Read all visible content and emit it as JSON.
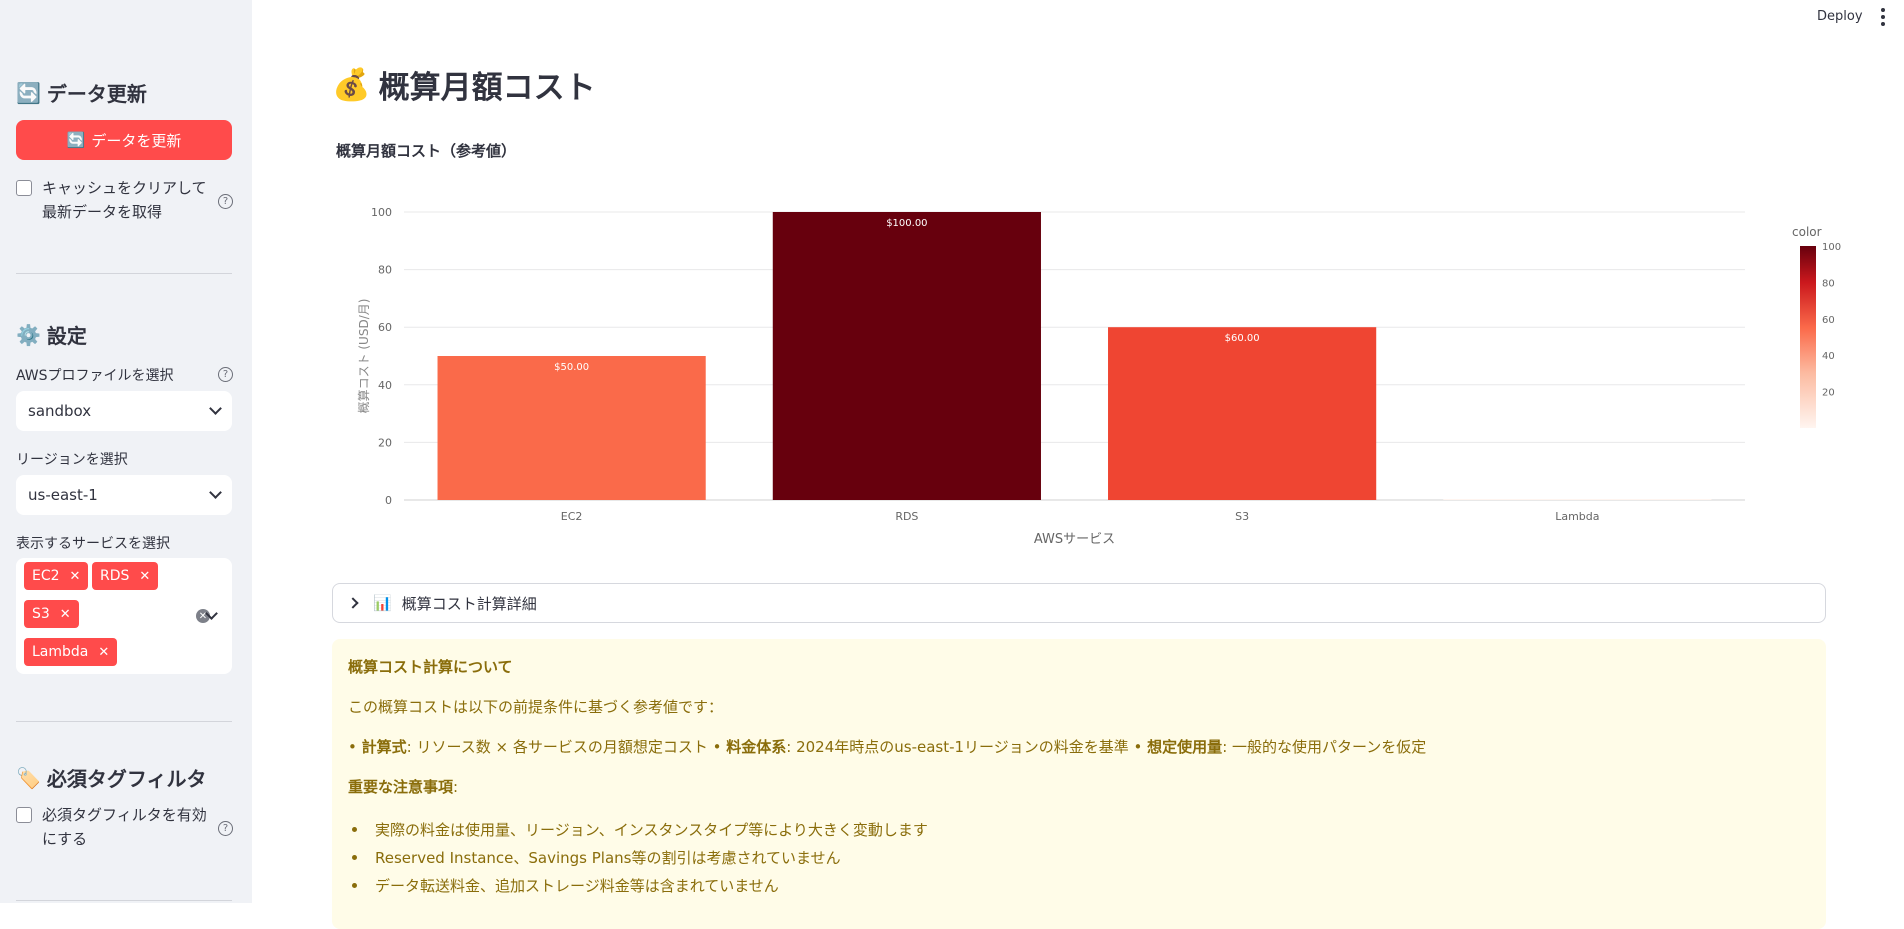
{
  "topbar": {
    "deploy_label": "Deploy"
  },
  "sidebar": {
    "refresh_section": {
      "icon": "🔄",
      "heading": "データ更新",
      "button_icon": "🔄",
      "button_label": "データを更新",
      "checkbox_label": "キャッシュをクリアして最新データを取得"
    },
    "settings_section": {
      "icon": "⚙️",
      "heading": "設定",
      "profile_label": "AWSプロファイルを選択",
      "profile_value": "sandbox",
      "region_label": "リージョンを選択",
      "region_value": "us-east-1",
      "services_label": "表示するサービスを選択",
      "services": [
        {
          "label": "EC2"
        },
        {
          "label": "RDS"
        },
        {
          "label": "S3"
        },
        {
          "label": "Lambda"
        }
      ]
    },
    "tag_section": {
      "icon": "🏷️",
      "heading": "必須タグフィルタ",
      "checkbox_label": "必須タグフィルタを有効にする"
    }
  },
  "main": {
    "title_icon": "💰",
    "title": "概算月額コスト",
    "chart_heading": "概算月額コスト（参考値）",
    "expander": {
      "icon": "📊",
      "label": "概算コスト計算詳細"
    },
    "info": {
      "heading": "概算コスト計算について",
      "intro": "この概算コストは以下の前提条件に基づく参考値です：",
      "formula_label": "計算式",
      "formula_text": ": リソース数 × 各サービスの月額想定コスト",
      "pricing_label": "料金体系",
      "pricing_text": ": 2024年時点のus-east-1リージョンの料金を基準",
      "usage_label": "想定使用量",
      "usage_text": ": 一般的な使用パターンを仮定",
      "notes_heading": "重要な注意事項",
      "notes": [
        "実際の料金は使用量、リージョン、インスタンスタイプ等により大きく変動します",
        "Reserved Instance、Savings Plans等の割引は考慮されていません",
        "データ転送料金、追加ストレージ料金等は含まれていません"
      ]
    }
  },
  "chart_data": {
    "type": "bar",
    "categories": [
      "EC2",
      "RDS",
      "S3",
      "Lambda"
    ],
    "values": [
      50,
      100,
      60,
      0.01
    ],
    "data_labels": [
      "$50.00",
      "$100.00",
      "$60.00",
      ""
    ],
    "xlabel": "AWSサービス",
    "ylabel": "概算コスト (USD/月)",
    "ylim": [
      0,
      100
    ],
    "yticks": [
      0,
      20,
      40,
      60,
      80,
      100
    ],
    "grid": true,
    "colorbar": {
      "title": "color",
      "ticks": [
        20,
        40,
        60,
        80,
        100
      ],
      "range": [
        0,
        100
      ]
    },
    "colors": [
      "#fa6a4a",
      "#67000d",
      "#ef4532",
      "#fff5f0"
    ]
  }
}
